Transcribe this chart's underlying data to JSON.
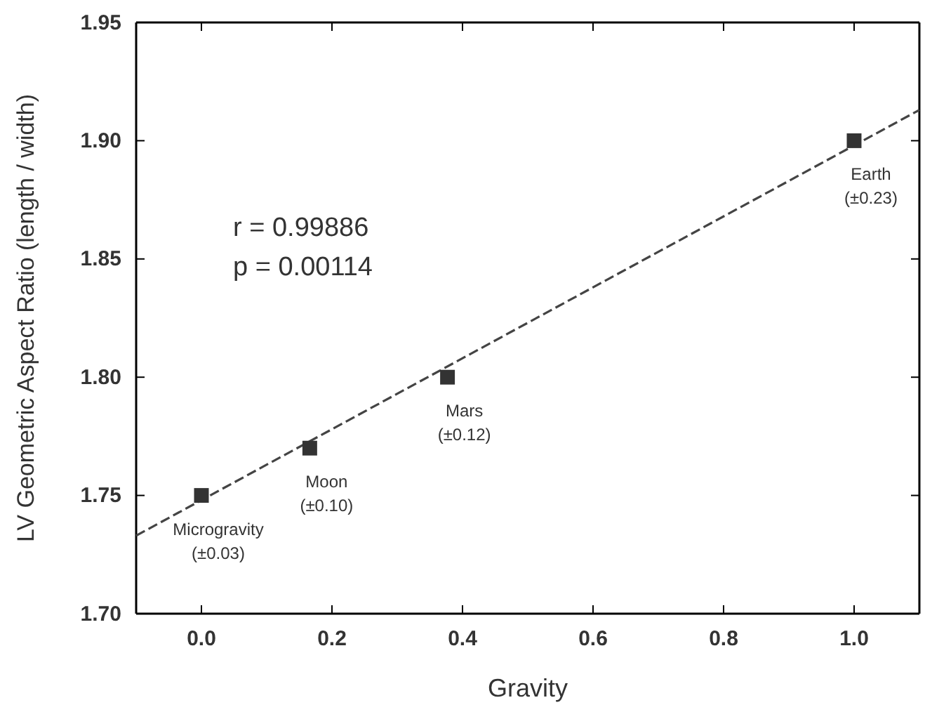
{
  "chart_data": {
    "type": "scatter",
    "xlabel": "Gravity",
    "ylabel": "LV Geometric Aspect Ratio (length / width)",
    "xlim": [
      -0.1,
      1.1
    ],
    "ylim": [
      1.7,
      1.95
    ],
    "xticks": [
      {
        "value": 0,
        "label": "0.0"
      },
      {
        "value": 0.2,
        "label": "0.2"
      },
      {
        "value": 0.4,
        "label": "0.4"
      },
      {
        "value": 0.6,
        "label": "0.6"
      },
      {
        "value": 0.8,
        "label": "0.8"
      },
      {
        "value": 1,
        "label": "1.0"
      }
    ],
    "yticks": [
      {
        "value": 1.7,
        "label": "1.70"
      },
      {
        "value": 1.75,
        "label": "1.75"
      },
      {
        "value": 1.8,
        "label": "1.80"
      },
      {
        "value": 1.85,
        "label": "1.85"
      },
      {
        "value": 1.9,
        "label": "1.90"
      },
      {
        "value": 1.95,
        "label": "1.95"
      }
    ],
    "marker": "square",
    "grid": false,
    "series": [
      {
        "color": "#333333",
        "x": [
          0,
          0.166,
          0.377,
          1.0
        ],
        "values": [
          1.75,
          1.77,
          1.8,
          1.9
        ]
      },
      {
        "type": "line",
        "color": "#444444",
        "line_style": "dashed",
        "marker": "none",
        "x": [
          -0.1,
          1.1
        ],
        "values": [
          1.733,
          1.913
        ]
      }
    ],
    "annotations": [
      "r = 0.99886",
      "p = 0.00114",
      {
        "text": "Microgravity\n(±0.03)",
        "x": 0,
        "y": 1.75
      },
      {
        "text": "Moon\n(±0.10)",
        "x": 0.166,
        "y": 1.77
      },
      {
        "text": "Mars\n(±0.12)",
        "x": 0.377,
        "y": 1.8
      },
      {
        "text": "Earth\n(±0.23)",
        "x": 1.0,
        "y": 1.9
      }
    ]
  }
}
